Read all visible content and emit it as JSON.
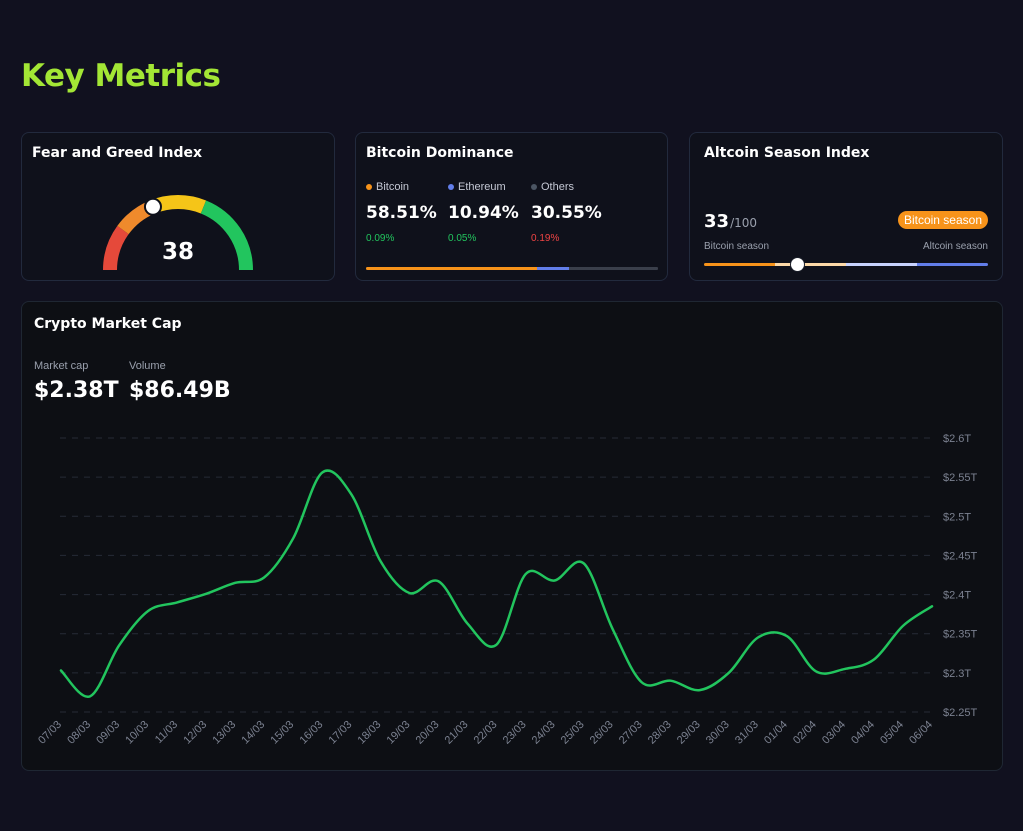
{
  "page": {
    "title": "Key Metrics"
  },
  "fear_greed": {
    "title": "Fear and Greed Index",
    "value": "38",
    "value_num": 38,
    "max": 100
  },
  "dominance": {
    "title": "Bitcoin Dominance",
    "items": [
      {
        "name": "Bitcoin",
        "pct": "58.51%",
        "change": "0.09%",
        "color": "#f7931a",
        "change_color": "#22c55e",
        "share": 58.51
      },
      {
        "name": "Ethereum",
        "pct": "10.94%",
        "change": "0.05%",
        "color": "#627eea",
        "change_color": "#22c55e",
        "share": 10.94
      },
      {
        "name": "Others",
        "pct": "30.55%",
        "change": "0.19%",
        "color": "#4b5563",
        "change_color": "#ef4444",
        "share": 30.55
      }
    ]
  },
  "altcoin": {
    "title": "Altcoin Season Index",
    "score": "33",
    "score_num": 33,
    "max": "/100",
    "badge": "Bitcoin season",
    "left_label": "Bitcoin season",
    "right_label": "Altcoin season",
    "colors": [
      "#f7931a",
      "#fcd9a8",
      "#c7d2fe",
      "#627eea"
    ]
  },
  "market": {
    "title": "Crypto Market Cap",
    "market_cap_label": "Market cap",
    "market_cap": "$2.38T",
    "volume_label": "Volume",
    "volume": "$86.49B",
    "line_color": "#22c55e"
  },
  "chart_data": {
    "type": "line",
    "title": "",
    "x": [
      "07/03",
      "08/03",
      "09/03",
      "10/03",
      "11/03",
      "12/03",
      "13/03",
      "14/03",
      "15/03",
      "16/03",
      "17/03",
      "18/03",
      "19/03",
      "20/03",
      "21/03",
      "22/03",
      "23/03",
      "24/03",
      "25/03",
      "26/03",
      "27/03",
      "28/03",
      "29/03",
      "30/03",
      "31/03",
      "01/04",
      "02/04",
      "03/04",
      "04/04",
      "05/04",
      "06/04"
    ],
    "series": [
      {
        "values": [
          2.303,
          2.27,
          2.335,
          2.379,
          2.39,
          2.401,
          2.415,
          2.422,
          2.472,
          2.556,
          2.528,
          2.443,
          2.402,
          2.417,
          2.363,
          2.336,
          2.426,
          2.418,
          2.44,
          2.356,
          2.288,
          2.29,
          2.278,
          2.3,
          2.345,
          2.347,
          2.302,
          2.305,
          2.317,
          2.36,
          2.385
        ]
      }
    ],
    "ylim": [
      2.25,
      2.6
    ],
    "y_ticks": [
      "$2.25T",
      "$2.3T",
      "$2.35T",
      "$2.4T",
      "$2.45T",
      "$2.5T",
      "$2.55T",
      "$2.6T"
    ],
    "y_tick_values": [
      2.25,
      2.3,
      2.35,
      2.4,
      2.45,
      2.5,
      2.55,
      2.6
    ],
    "grid": true
  }
}
